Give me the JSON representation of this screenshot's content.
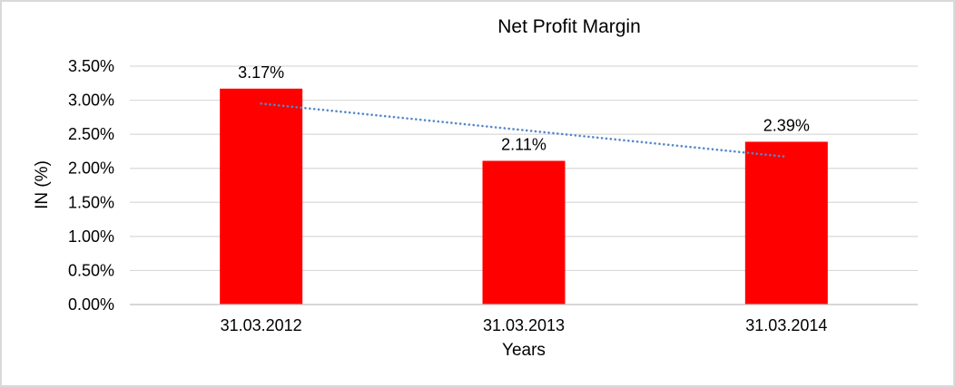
{
  "chart_data": {
    "type": "bar",
    "title": "Net Profit Margin",
    "xlabel": "Years",
    "ylabel": "IN (%)",
    "categories": [
      "31.03.2012",
      "31.03.2013",
      "31.03.2014"
    ],
    "values": [
      3.17,
      2.11,
      2.39
    ],
    "value_labels": [
      "3.17%",
      "2.11%",
      "2.39%"
    ],
    "ylim": [
      0,
      3.5
    ],
    "ytick_step": 0.5,
    "ytick_labels": [
      "0.00%",
      "0.50%",
      "1.00%",
      "1.50%",
      "2.00%",
      "2.50%",
      "3.00%",
      "3.50%"
    ],
    "grid": true,
    "legend": "none",
    "bar_color": "#ff0000",
    "gridline_color": "#d9d9d9",
    "axis_line_color": "#bfbfbf",
    "text_color": "#000000",
    "background_color": "#ffffff",
    "frame_border_color": "#d9d9d9",
    "trendline": {
      "type": "linear",
      "style": "dotted",
      "color": "#5389c9",
      "start_value": 2.95,
      "end_value": 2.17
    }
  }
}
